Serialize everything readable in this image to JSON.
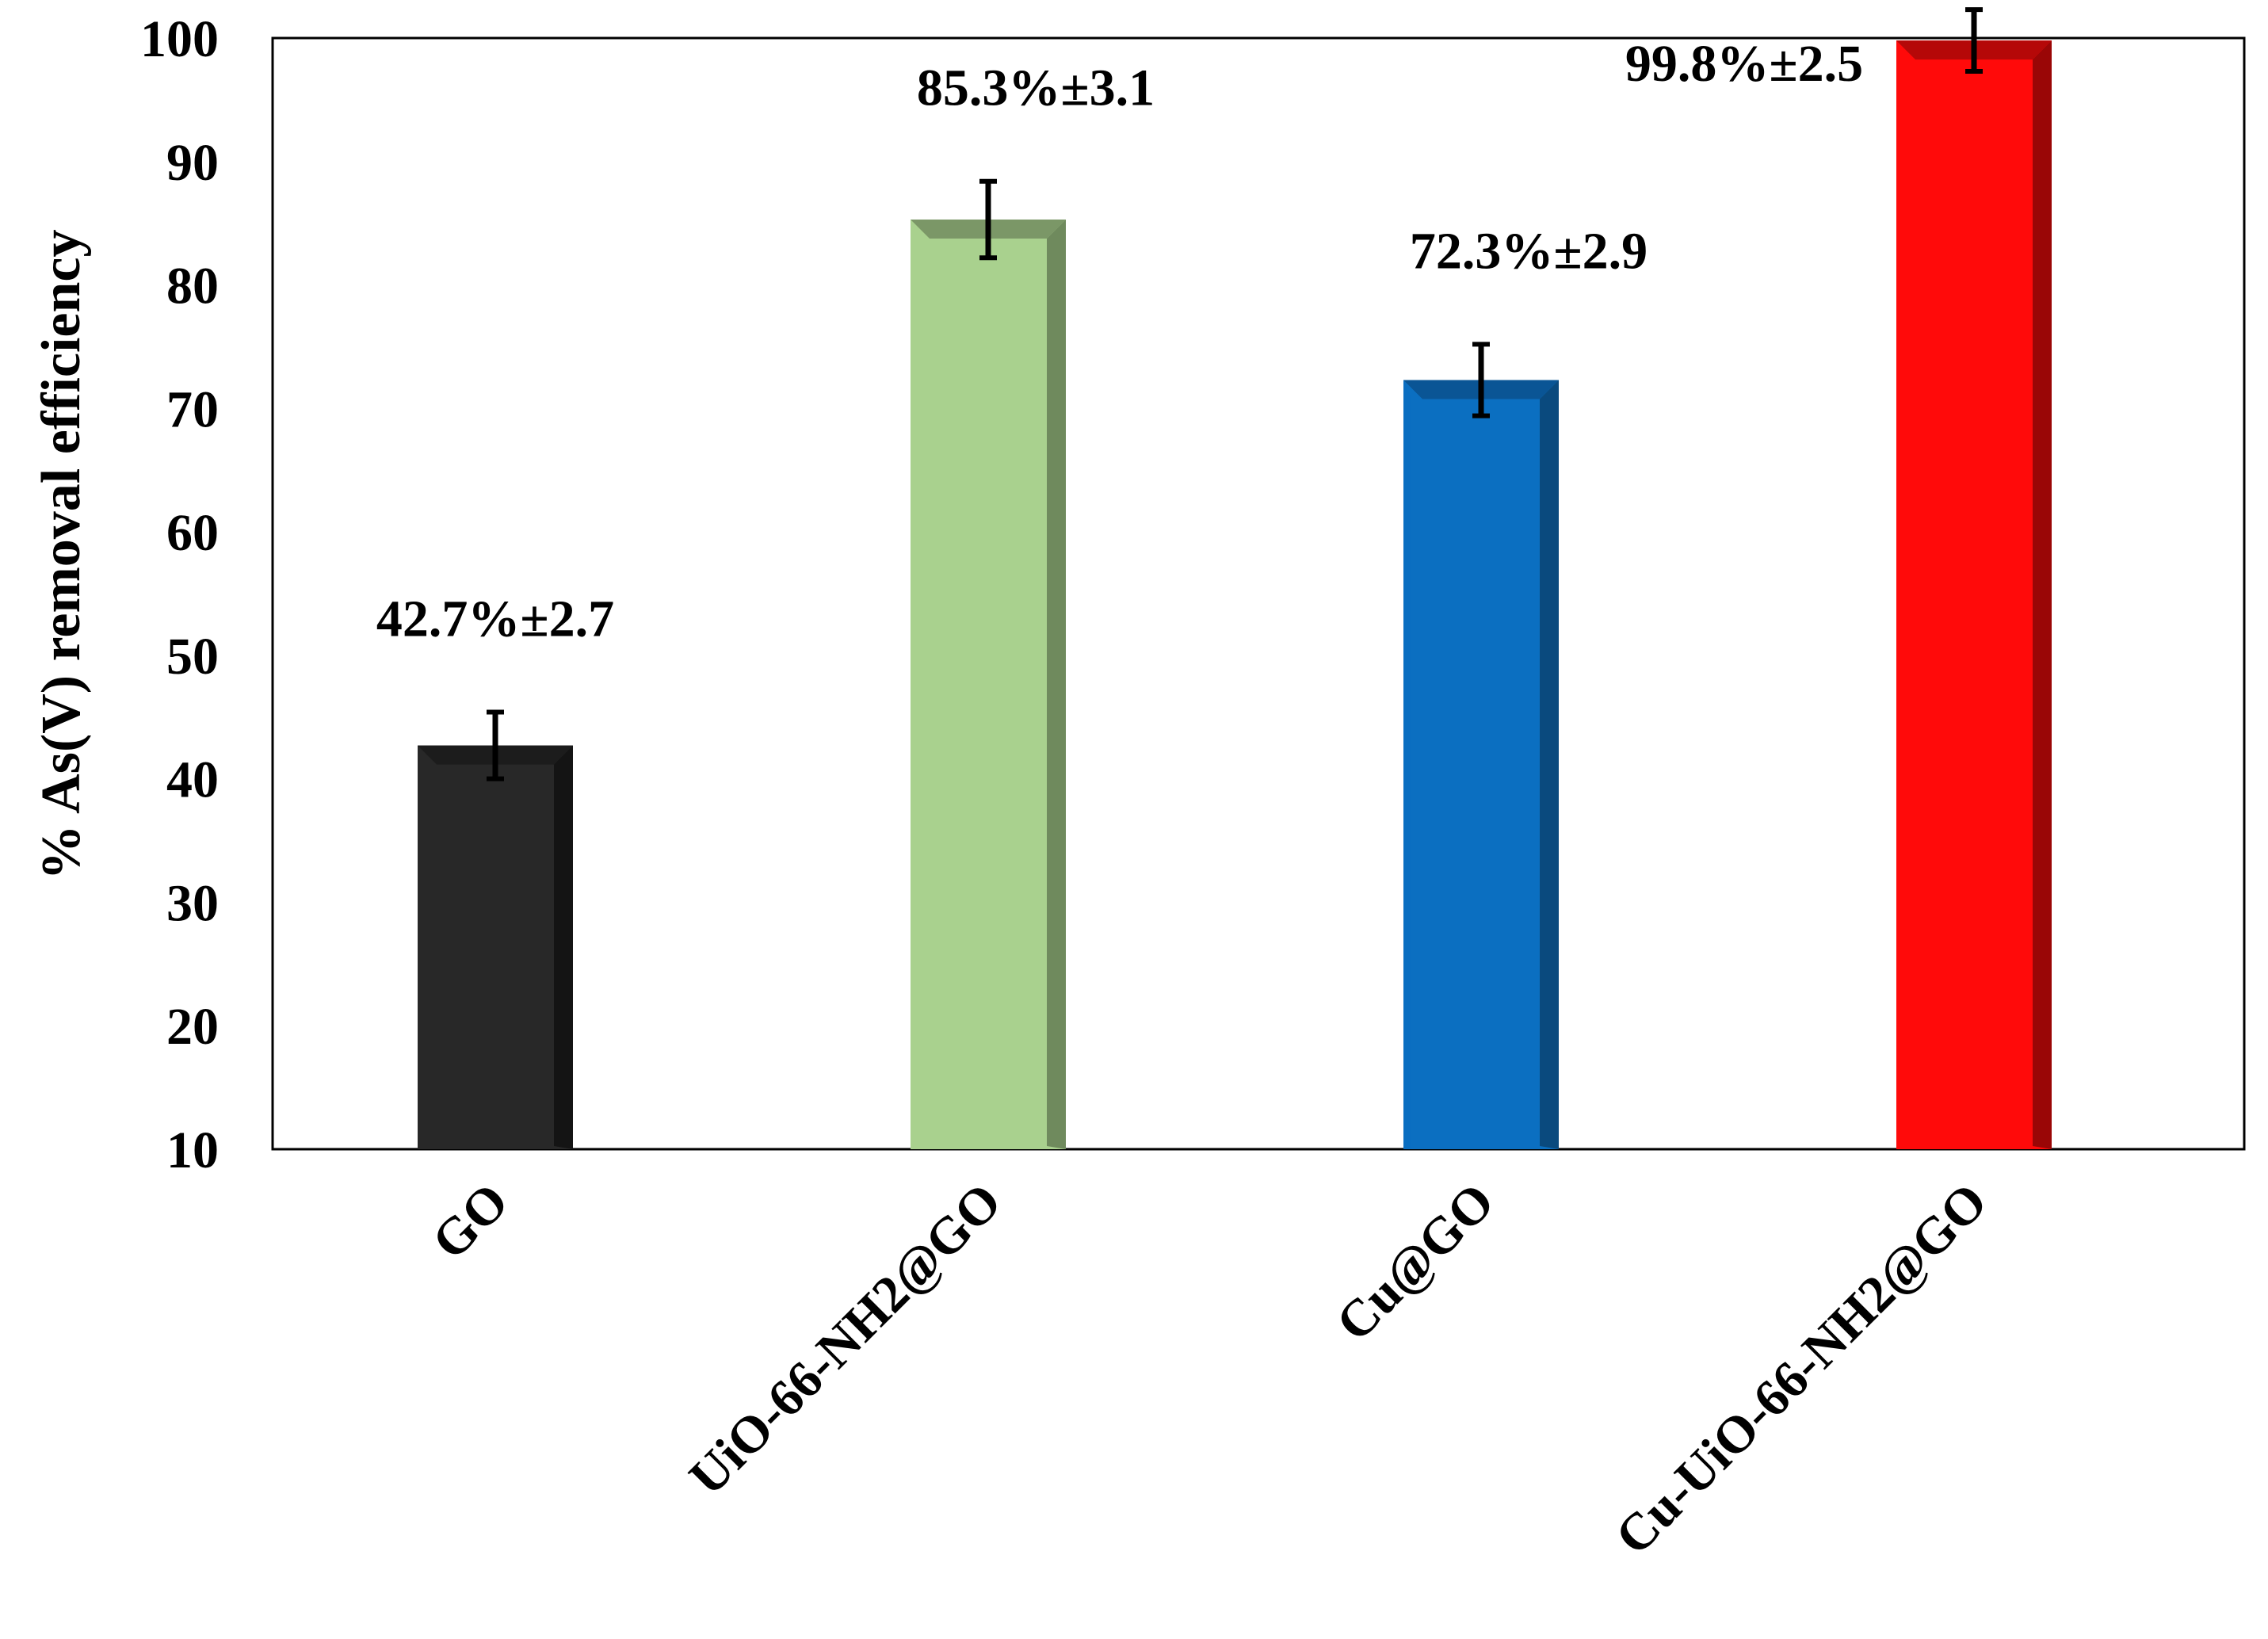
{
  "chart_data": {
    "type": "bar",
    "title": "",
    "xlabel": "",
    "ylabel": "% As(V) removal efficiency",
    "ylim": [
      10,
      100
    ],
    "yticks": [
      10,
      20,
      30,
      40,
      50,
      60,
      70,
      80,
      90,
      100
    ],
    "categories": [
      "GO",
      "UiO-66-NH2@GO",
      "Cu@GO",
      "Cu-UiO-66-NH2@GO"
    ],
    "values": [
      42.7,
      85.3,
      72.3,
      99.8
    ],
    "errors": [
      2.7,
      3.1,
      2.9,
      2.5
    ],
    "data_labels": [
      "42.7%±2.7",
      "85.3%±3.1",
      "72.3%±2.9",
      "99.8%±2.5"
    ],
    "bar_colors": [
      "#282828",
      "#a9d18e",
      "#0b6fc1",
      "#ff0a0a"
    ],
    "bar_side_colors": [
      "#141414",
      "#6f8a5d",
      "#0a4a7e",
      "#9a0606"
    ],
    "bar_top_colors": [
      "#1c1c1c",
      "#7b9767",
      "#0a5595",
      "#b50808"
    ],
    "grid": false,
    "legend": "none"
  }
}
